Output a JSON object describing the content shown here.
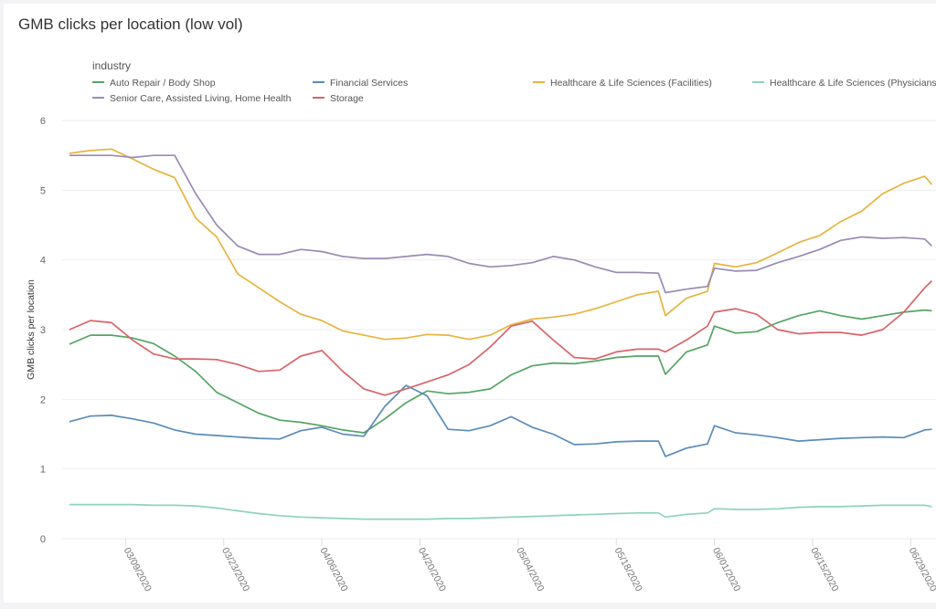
{
  "chart_data": {
    "type": "line",
    "title": "GMB clicks per location (low vol)",
    "xlabel": "",
    "ylabel": "GMB clicks per location",
    "ylim": [
      0,
      6
    ],
    "yticks": [
      "0",
      "1",
      "2",
      "3",
      "4",
      "5",
      "6"
    ],
    "xticks": [
      "03/09/2020",
      "03/23/2020",
      "04/06/2020",
      "04/20/2020",
      "05/04/2020",
      "05/18/2020",
      "06/01/2020",
      "06/15/2020",
      "06/29/2020"
    ],
    "grid": true,
    "legend": {
      "title": "industry",
      "placement": "top"
    },
    "x": [
      "03/01/2020",
      "03/04/2020",
      "03/07/2020",
      "03/10/2020",
      "03/13/2020",
      "03/16/2020",
      "03/19/2020",
      "03/22/2020",
      "03/25/2020",
      "03/28/2020",
      "03/31/2020",
      "04/03/2020",
      "04/06/2020",
      "04/09/2020",
      "04/12/2020",
      "04/15/2020",
      "04/18/2020",
      "04/21/2020",
      "04/24/2020",
      "04/27/2020",
      "04/30/2020",
      "05/03/2020",
      "05/06/2020",
      "05/09/2020",
      "05/12/2020",
      "05/15/2020",
      "05/18/2020",
      "05/21/2020",
      "05/24/2020",
      "05/25/2020",
      "05/28/2020",
      "05/31/2020",
      "06/01/2020",
      "06/04/2020",
      "06/07/2020",
      "06/10/2020",
      "06/13/2020",
      "06/16/2020",
      "06/19/2020",
      "06/22/2020",
      "06/25/2020",
      "06/28/2020",
      "07/01/2020",
      "07/02/2020"
    ],
    "series": [
      {
        "name": "Auto Repair / Body Shop",
        "color": "#55a464",
        "values": [
          2.79,
          2.92,
          2.92,
          2.88,
          2.8,
          2.62,
          2.4,
          2.1,
          1.95,
          1.8,
          1.7,
          1.67,
          1.62,
          1.56,
          1.52,
          1.72,
          1.95,
          2.12,
          2.08,
          2.1,
          2.15,
          2.35,
          2.48,
          2.52,
          2.51,
          2.55,
          2.6,
          2.62,
          2.62,
          2.36,
          2.68,
          2.78,
          3.05,
          2.95,
          2.97,
          3.1,
          3.2,
          3.27,
          3.2,
          3.15,
          3.2,
          3.25,
          3.28,
          3.27
        ]
      },
      {
        "name": "Financial Services",
        "color": "#5b8cb8",
        "values": [
          1.68,
          1.76,
          1.77,
          1.72,
          1.66,
          1.56,
          1.5,
          1.48,
          1.46,
          1.44,
          1.43,
          1.55,
          1.6,
          1.5,
          1.47,
          1.9,
          2.2,
          2.05,
          1.57,
          1.55,
          1.62,
          1.75,
          1.6,
          1.5,
          1.35,
          1.36,
          1.39,
          1.4,
          1.4,
          1.18,
          1.3,
          1.36,
          1.62,
          1.52,
          1.49,
          1.45,
          1.4,
          1.42,
          1.44,
          1.45,
          1.46,
          1.45,
          1.56,
          1.57
        ]
      },
      {
        "name": "Healthcare & Life Sciences (Facilities)",
        "color": "#e6b43e",
        "values": [
          5.53,
          5.57,
          5.59,
          5.45,
          5.3,
          5.18,
          4.6,
          4.33,
          3.8,
          3.6,
          3.4,
          3.22,
          3.13,
          2.98,
          2.92,
          2.86,
          2.88,
          2.93,
          2.92,
          2.86,
          2.92,
          3.07,
          3.15,
          3.18,
          3.22,
          3.3,
          3.4,
          3.5,
          3.55,
          3.2,
          3.45,
          3.55,
          3.95,
          3.9,
          3.96,
          4.1,
          4.25,
          4.35,
          4.55,
          4.7,
          4.95,
          5.1,
          5.2,
          5.08
        ]
      },
      {
        "name": "Healthcare & Life Sciences (Physicians)",
        "color": "#8fd3bd",
        "values": [
          0.49,
          0.49,
          0.49,
          0.49,
          0.48,
          0.48,
          0.47,
          0.44,
          0.4,
          0.36,
          0.33,
          0.31,
          0.3,
          0.29,
          0.28,
          0.28,
          0.28,
          0.28,
          0.29,
          0.29,
          0.3,
          0.31,
          0.32,
          0.33,
          0.34,
          0.35,
          0.36,
          0.37,
          0.37,
          0.31,
          0.35,
          0.37,
          0.43,
          0.42,
          0.42,
          0.43,
          0.45,
          0.46,
          0.46,
          0.47,
          0.48,
          0.48,
          0.48,
          0.46
        ]
      },
      {
        "name": "Senior Care, Assisted Living, Home Health",
        "color": "#9a8cb2",
        "values": [
          5.5,
          5.5,
          5.5,
          5.47,
          5.5,
          5.5,
          4.95,
          4.5,
          4.2,
          4.08,
          4.08,
          4.15,
          4.12,
          4.05,
          4.02,
          4.02,
          4.05,
          4.08,
          4.05,
          3.95,
          3.9,
          3.92,
          3.96,
          4.05,
          4.0,
          3.9,
          3.82,
          3.82,
          3.81,
          3.53,
          3.58,
          3.62,
          3.88,
          3.84,
          3.85,
          3.96,
          4.05,
          4.15,
          4.28,
          4.33,
          4.31,
          4.32,
          4.3,
          4.2
        ]
      },
      {
        "name": "Storage",
        "color": "#d8646a",
        "values": [
          3.0,
          3.13,
          3.1,
          2.85,
          2.65,
          2.58,
          2.58,
          2.57,
          2.5,
          2.4,
          2.42,
          2.62,
          2.7,
          2.4,
          2.15,
          2.06,
          2.15,
          2.25,
          2.35,
          2.5,
          2.75,
          3.05,
          3.12,
          2.85,
          2.6,
          2.58,
          2.68,
          2.72,
          2.72,
          2.68,
          2.85,
          3.05,
          3.25,
          3.3,
          3.22,
          3.0,
          2.94,
          2.96,
          2.96,
          2.92,
          3.0,
          3.25,
          3.6,
          3.7
        ]
      }
    ]
  }
}
